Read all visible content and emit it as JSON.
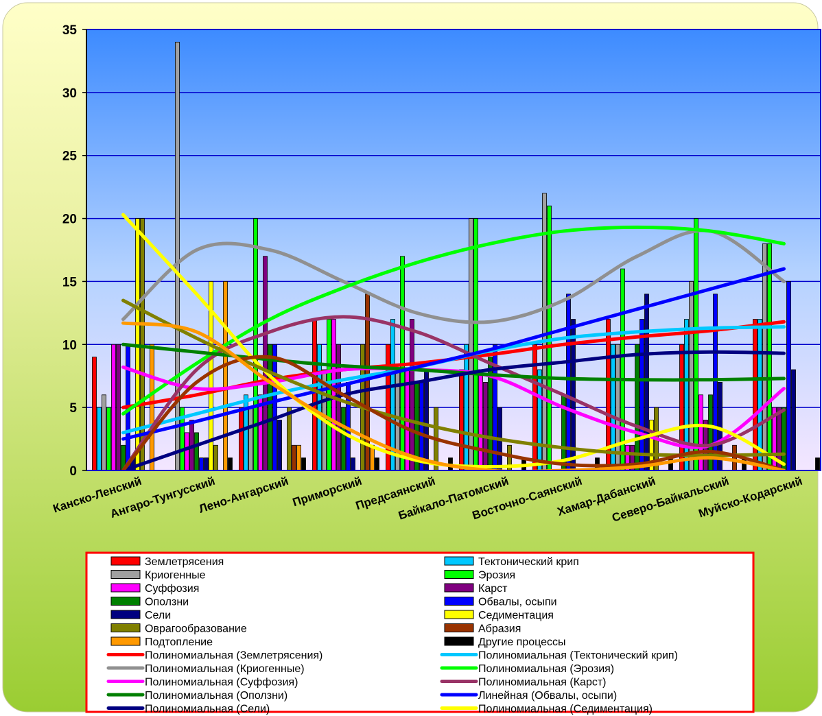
{
  "chart_data": {
    "type": "bar",
    "title": "",
    "xlabel": "",
    "ylabel": "",
    "ylim": [
      0,
      35
    ],
    "yticks": [
      0,
      5,
      10,
      15,
      20,
      25,
      30,
      35
    ],
    "grid": true,
    "legend_position": "bottom",
    "categories": [
      "Канско-Ленский",
      "Ангаро-Тунгусский",
      "Лено-Ангарский",
      "Приморский",
      "Предсаянский",
      "Байкало-Патомский",
      "Восточно-Саянский",
      "Хамар-Дабанский",
      "Северо-Байкальский",
      "Муйско-Кодарский"
    ],
    "series": [
      {
        "name": "Землетрясения",
        "color": "#ff0000",
        "values": [
          9,
          0,
          5,
          12,
          10,
          8,
          10,
          12,
          10,
          12
        ]
      },
      {
        "name": "Тектонический крип",
        "color": "#00c8ff",
        "values": [
          5,
          0,
          6,
          10,
          12,
          10,
          8,
          10,
          12,
          12
        ]
      },
      {
        "name": "Криогенные",
        "color": "#a0a0a0",
        "values": [
          6,
          34,
          5,
          8,
          8,
          20,
          22,
          10,
          15,
          18
        ]
      },
      {
        "name": "Эрозия",
        "color": "#00ff00",
        "values": [
          5,
          5,
          20,
          12,
          17,
          20,
          21,
          16,
          20,
          18
        ]
      },
      {
        "name": "Суффозия",
        "color": "#ff00ff",
        "values": [
          10,
          3,
          6,
          12,
          8,
          8,
          0,
          2,
          6,
          5
        ]
      },
      {
        "name": "Карст",
        "color": "#800080",
        "values": [
          10,
          4,
          17,
          10,
          12,
          7,
          0,
          2,
          4,
          5
        ]
      },
      {
        "name": "Оползни",
        "color": "#008000",
        "values": [
          2,
          3,
          10,
          5,
          7,
          9,
          6,
          10,
          6,
          5
        ]
      },
      {
        "name": "Обвалы, осыпи",
        "color": "#0000ff",
        "values": [
          10,
          1,
          10,
          7,
          7,
          10,
          14,
          12,
          14,
          15
        ]
      },
      {
        "name": "Сели",
        "color": "#000080",
        "values": [
          1,
          1,
          4,
          1,
          8,
          5,
          12,
          14,
          7,
          8
        ]
      },
      {
        "name": "Седиментация",
        "color": "#ffff00",
        "values": [
          20,
          15,
          0,
          0,
          0,
          0,
          0,
          4,
          0,
          0
        ]
      },
      {
        "name": "Оврагообразование",
        "color": "#808000",
        "values": [
          20,
          2,
          5,
          10,
          5,
          2,
          0,
          5,
          0,
          0
        ]
      },
      {
        "name": "Абразия",
        "color": "#993300",
        "values": [
          0,
          0,
          2,
          14,
          0,
          0,
          0,
          0,
          2,
          0
        ]
      },
      {
        "name": "Подтопление",
        "color": "#ff9900",
        "values": [
          10,
          15,
          2,
          2,
          0,
          0,
          0,
          0,
          0,
          0
        ]
      },
      {
        "name": "Другие процессы",
        "color": "#000000",
        "values": [
          0,
          1,
          1,
          1,
          1,
          1,
          1,
          1,
          1,
          1
        ]
      }
    ],
    "trendlines": [
      {
        "name": "Полиномиальная  (Землетрясения)",
        "color": "#ff0000",
        "values": [
          5,
          6,
          7.2,
          8,
          8.5,
          9.2,
          10,
          10.6,
          11.1,
          11.8
        ]
      },
      {
        "name": "Полиномиальная  (Тектонический  крип)",
        "color": "#00c8ff",
        "values": [
          3,
          4.5,
          6,
          7.2,
          8.2,
          9.5,
          10.5,
          11,
          11.3,
          11.4
        ]
      },
      {
        "name": "Полиномиальная  (Криогенные)",
        "color": "#909090",
        "values": [
          12,
          17.5,
          17.5,
          15,
          12.5,
          11.8,
          13.5,
          17,
          19,
          15
        ]
      },
      {
        "name": "Полиномиальная  (Эрозия)",
        "color": "#00ff00",
        "values": [
          4.5,
          8.5,
          12,
          14.5,
          16.5,
          18,
          19,
          19.3,
          19,
          18
        ]
      },
      {
        "name": "Полиномиальная  (Суффозия)",
        "color": "#ff00ff",
        "values": [
          8.2,
          6.5,
          7,
          8,
          8,
          7.5,
          5,
          3,
          2,
          6.5
        ]
      },
      {
        "name": "Полиномиальная  (Карст)",
        "color": "#993366",
        "values": [
          0,
          8,
          11,
          12.2,
          11,
          8.5,
          6,
          3.5,
          2,
          4.8
        ]
      },
      {
        "name": "Полиномиальная  (Оползни)",
        "color": "#008000",
        "values": [
          10,
          9.4,
          8.8,
          8.3,
          8,
          7.6,
          7.3,
          7.2,
          7.2,
          7.3
        ]
      },
      {
        "name": "Линейная  (Обвалы,  осыпи)",
        "color": "#0000ff",
        "values": [
          2.5,
          3.9,
          5.4,
          6.8,
          8.2,
          9.6,
          11.2,
          12.8,
          14.4,
          16
        ]
      },
      {
        "name": "Полиномиальная  (Сели)",
        "color": "#000080",
        "values": [
          0,
          2,
          4,
          6,
          7,
          8,
          8.6,
          9.2,
          9.4,
          9.3
        ]
      },
      {
        "name": "Полиномиальная  (Седиментация)",
        "color": "#ffff00",
        "values": [
          20.3,
          14,
          7.5,
          3,
          0.8,
          0.3,
          0.8,
          2.5,
          3.5,
          0.5
        ]
      },
      {
        "name": "Полиномиальная  (Оврагообразование)",
        "color": "#808000",
        "values": [
          13.5,
          10.5,
          7.8,
          5.5,
          3.8,
          2.6,
          1.8,
          1.3,
          1.2,
          1.3
        ]
      },
      {
        "name": "Полиномиальная  (Абразия)",
        "color": "#993300",
        "values": [
          0,
          7,
          9,
          6,
          3,
          1.5,
          0.5,
          0.5,
          1.5,
          0
        ]
      },
      {
        "name": "Полиномиальная  (Подтопление)",
        "color": "#ff9900",
        "values": [
          11.7,
          11,
          7,
          3.5,
          1,
          0,
          0,
          0.3,
          1,
          0
        ]
      }
    ],
    "legend": [
      {
        "label": "Землетрясения",
        "color": "#ff0000",
        "kind": "bar"
      },
      {
        "label": "Тектонический  крип",
        "color": "#00c8ff",
        "kind": "bar"
      },
      {
        "label": "Криогенные",
        "color": "#a0a0a0",
        "kind": "bar"
      },
      {
        "label": "Эрозия",
        "color": "#00ff00",
        "kind": "bar"
      },
      {
        "label": "Суффозия",
        "color": "#ff00ff",
        "kind": "bar"
      },
      {
        "label": "Карст",
        "color": "#800080",
        "kind": "bar"
      },
      {
        "label": "Оползни",
        "color": "#008000",
        "kind": "bar"
      },
      {
        "label": "Обвалы,  осыпи",
        "color": "#0000ff",
        "kind": "bar"
      },
      {
        "label": "Сели",
        "color": "#000080",
        "kind": "bar"
      },
      {
        "label": "Седиментация",
        "color": "#ffff00",
        "kind": "bar"
      },
      {
        "label": "Оврагообразование",
        "color": "#808000",
        "kind": "bar"
      },
      {
        "label": "Абразия",
        "color": "#993300",
        "kind": "bar"
      },
      {
        "label": "Подтопление",
        "color": "#ff9900",
        "kind": "bar"
      },
      {
        "label": "Другие процессы",
        "color": "#000000",
        "kind": "bar"
      },
      {
        "label": "Полиномиальная  (Землетрясения)",
        "color": "#ff0000",
        "kind": "line"
      },
      {
        "label": "Полиномиальная  (Тектонический  крип)",
        "color": "#00c8ff",
        "kind": "line"
      },
      {
        "label": "Полиномиальная  (Криогенные)",
        "color": "#909090",
        "kind": "line"
      },
      {
        "label": "Полиномиальная  (Эрозия)",
        "color": "#00ff00",
        "kind": "line"
      },
      {
        "label": "Полиномиальная  (Суффозия)",
        "color": "#ff00ff",
        "kind": "line"
      },
      {
        "label": "Полиномиальная  (Карст)",
        "color": "#993366",
        "kind": "line"
      },
      {
        "label": "Полиномиальная  (Оползни)",
        "color": "#008000",
        "kind": "line"
      },
      {
        "label": "Линейная  (Обвалы,  осыпи)",
        "color": "#0000ff",
        "kind": "line"
      },
      {
        "label": "Полиномиальная  (Сели)",
        "color": "#000080",
        "kind": "line"
      },
      {
        "label": "Полиномиальная  (Седиментация)",
        "color": "#ffff00",
        "kind": "line"
      }
    ]
  }
}
